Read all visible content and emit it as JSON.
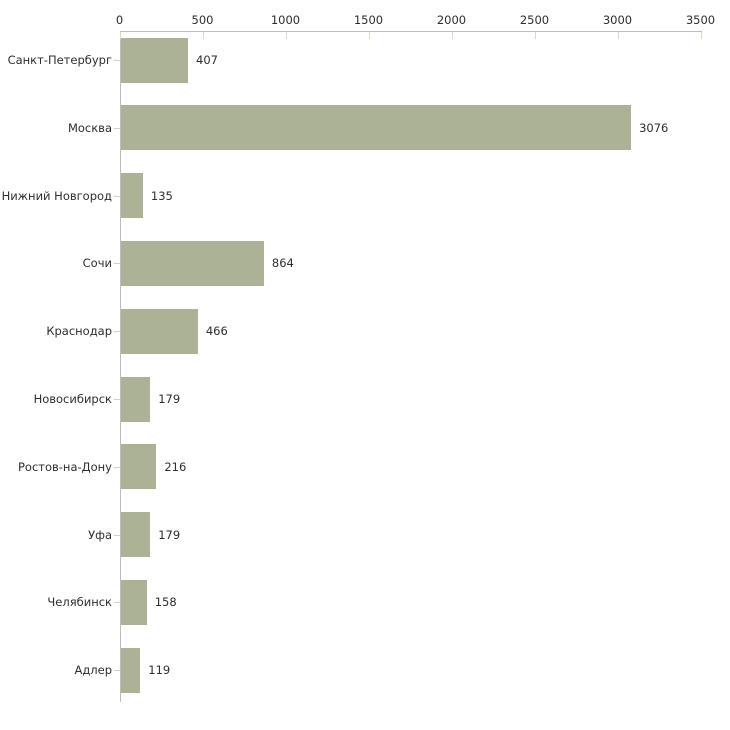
{
  "chart_data": {
    "type": "bar",
    "orientation": "horizontal",
    "title": "",
    "xlabel": "",
    "ylabel": "",
    "categories": [
      "Санкт-Петербург",
      "Москва",
      "Нижний Новгород",
      "Сочи",
      "Краснодар",
      "Новосибирск",
      "Ростов-на-Дону",
      "Уфа",
      "Челябинск",
      "Адлер"
    ],
    "values": [
      407,
      3076,
      135,
      864,
      466,
      179,
      216,
      179,
      158,
      119
    ],
    "value_labels": [
      "407",
      "3076",
      "135",
      "864",
      "466",
      "179",
      "216",
      "179",
      "158",
      "119"
    ],
    "x_axis": {
      "position": "top",
      "min": 0,
      "max": 3500,
      "tick_interval": 500,
      "tick_labels": [
        "0",
        "500",
        "1000",
        "1500",
        "2000",
        "2500",
        "3000",
        "3500"
      ]
    },
    "grid": false,
    "legend": null,
    "colors": {
      "bar": "#abb296",
      "axis_line": "#bcbcbc",
      "x_tick": "#d8dcbe",
      "category_tick": "#d0d3c2",
      "text": "#2e2e2e",
      "background": "#ffffff"
    }
  }
}
